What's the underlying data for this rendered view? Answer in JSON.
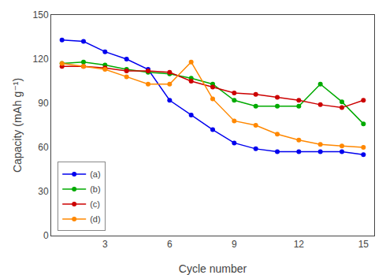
{
  "chart_data": {
    "type": "line",
    "xlabel": "Cycle number",
    "ylabel": "Capacity (mAh g⁻¹)",
    "x": [
      1,
      2,
      3,
      4,
      5,
      6,
      7,
      8,
      9,
      10,
      11,
      12,
      13,
      14,
      15
    ],
    "xlim": [
      0.5,
      15.5
    ],
    "xticks": [
      3,
      6,
      9,
      12,
      15
    ],
    "ylim": [
      0,
      150
    ],
    "yticks": [
      0,
      30,
      60,
      90,
      120,
      150
    ],
    "grid": false,
    "legend": "lower left",
    "marker": "circle",
    "series": [
      {
        "name": "(a)",
        "color": "#0000EE",
        "values": [
          133,
          132,
          125,
          120,
          113,
          92,
          82,
          72,
          63,
          59,
          57,
          57,
          57,
          57,
          55
        ]
      },
      {
        "name": "(b)",
        "color": "#00AA00",
        "values": [
          117,
          118,
          116,
          113,
          111,
          110,
          107,
          103,
          92,
          88,
          88,
          88,
          103,
          91,
          76
        ]
      },
      {
        "name": "(c)",
        "color": "#CC0000",
        "values": [
          115,
          115,
          114,
          112,
          112,
          111,
          105,
          101,
          97,
          96,
          94,
          92,
          89,
          87,
          92
        ]
      },
      {
        "name": "(d)",
        "color": "#FF8800",
        "values": [
          117,
          115,
          113,
          108,
          103,
          103,
          118,
          93,
          78,
          75,
          69,
          65,
          62,
          61,
          60
        ]
      }
    ]
  }
}
